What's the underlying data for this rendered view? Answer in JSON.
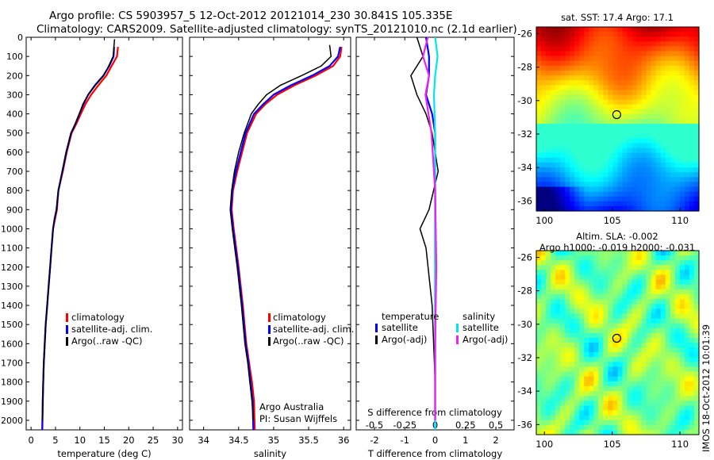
{
  "header": {
    "line1": "Argo profile: CS 5903957_5 12-Oct-2012 20121014_230 30.841S 105.335E",
    "line2": "Climatology: CARS2009. Satellite-adjusted climatology: synTS_20121010.nc (2.1d earlier)"
  },
  "colors": {
    "climatology": "#ff0000",
    "satellite": "#0000ff",
    "argo": "#000000",
    "salinity_satellite": "#00e5ee",
    "salinity_argo": "#ee22ee"
  },
  "depth_axis": {
    "ticks": [
      "0",
      "100",
      "200",
      "300",
      "400",
      "500",
      "600",
      "700",
      "800",
      "900",
      "1000",
      "1100",
      "1200",
      "1300",
      "1400",
      "1500",
      "1600",
      "1700",
      "1800",
      "1900",
      "2000"
    ]
  },
  "temp_panel": {
    "xlabel": "temperature (deg C)",
    "ticks": [
      "0",
      "5",
      "10",
      "15",
      "20",
      "25",
      "30"
    ],
    "legend": [
      "climatology",
      "satellite-adj. clim.",
      "Argo(..raw -QC)"
    ]
  },
  "sal_panel": {
    "xlabel": "salinity",
    "ticks": [
      "34",
      "34.5",
      "35",
      "35.5",
      "36"
    ],
    "legend": [
      "climatology",
      "satellite-adj. clim.",
      "Argo(..raw -QC)"
    ],
    "credit1": "Argo Australia",
    "credit2": "PI: Susan Wijffels"
  },
  "diff_panel": {
    "xlabel": "T difference from climatology",
    "top_label": "S difference from climatology",
    "t_ticks": [
      "-2",
      "-1",
      "0",
      "1",
      "2"
    ],
    "s_ticks": [
      "-0.5",
      "-0.25",
      "0",
      "0.25",
      "0.5"
    ],
    "legend_temp_title": "temperature",
    "legend_sal_title": "salinity",
    "legend_temp": [
      "satellite",
      "Argo(-adj)"
    ],
    "legend_sal": [
      "satellite",
      "Argo(-adj)"
    ]
  },
  "sst_map": {
    "title": "sat. SST: 17.4  Argo: 17.1",
    "lat_ticks": [
      "-26",
      "-28",
      "-30",
      "-32",
      "-34",
      "-36"
    ],
    "lon_ticks": [
      "100",
      "105",
      "110"
    ]
  },
  "sla_map": {
    "title1": "Altim. SLA: -0.002",
    "title2": "Argo h1000: -0.019 h2000: -0.031",
    "lat_ticks": [
      "-26",
      "-28",
      "-30",
      "-32",
      "-34",
      "-36"
    ],
    "lon_ticks": [
      "100",
      "105",
      "110"
    ]
  },
  "timestamp": "IMOS 18-Oct-2012 10:01:39",
  "chart_data": [
    {
      "type": "line",
      "panel": "temperature",
      "xlabel": "temperature (deg C)",
      "xlim": [
        -1,
        31
      ],
      "ylim": [
        2050,
        0
      ],
      "series": [
        {
          "name": "climatology",
          "x": [
            17.8,
            17.6,
            16.5,
            15.4,
            13.8,
            12.3,
            11.1,
            10.2,
            9.3,
            8.3,
            7.3,
            6.5,
            5.6,
            5.3,
            4.9,
            4.5,
            4.2,
            3.9,
            3.6,
            3.3,
            3.0,
            2.8,
            2.6,
            2.5,
            2.4,
            2.3
          ],
          "y": [
            50,
            100,
            150,
            200,
            250,
            300,
            350,
            400,
            450,
            500,
            600,
            700,
            800,
            900,
            950,
            1000,
            1100,
            1200,
            1300,
            1400,
            1500,
            1600,
            1700,
            1800,
            1900,
            2050
          ]
        },
        {
          "name": "satellite-adj. clim.",
          "x": [
            17.0,
            16.9,
            16.0,
            14.8,
            13.1,
            11.7,
            10.7,
            9.9,
            9.1,
            8.2,
            7.2,
            6.4,
            5.6,
            5.2,
            4.8,
            4.5,
            4.2,
            3.9,
            3.6,
            3.3,
            3.0,
            2.8,
            2.6,
            2.5,
            2.4,
            2.3
          ],
          "y": [
            50,
            100,
            150,
            200,
            250,
            300,
            350,
            400,
            450,
            500,
            600,
            700,
            800,
            900,
            950,
            1000,
            1100,
            1200,
            1300,
            1400,
            1500,
            1600,
            1700,
            1800,
            1900,
            2050
          ]
        },
        {
          "name": "Argo(..raw -QC)",
          "x": [
            17.1,
            16.8,
            15.9,
            14.9,
            13.2,
            11.7,
            10.6,
            9.9,
            9.1,
            8.2,
            7.2,
            6.4,
            5.6,
            5.2,
            4.8,
            4.5,
            4.2,
            3.9,
            3.6,
            3.3,
            3.0,
            2.8,
            2.6,
            2.5,
            2.4,
            2.3
          ],
          "y": [
            10,
            100,
            150,
            200,
            250,
            300,
            350,
            400,
            450,
            500,
            600,
            700,
            800,
            900,
            950,
            1000,
            1100,
            1200,
            1300,
            1400,
            1500,
            1600,
            1700,
            1800,
            1900,
            2000
          ]
        }
      ]
    },
    {
      "type": "line",
      "panel": "salinity",
      "xlabel": "salinity",
      "xlim": [
        33.8,
        36.1
      ],
      "ylim": [
        2050,
        0
      ],
      "series": [
        {
          "name": "climatology",
          "x": [
            35.97,
            35.95,
            35.85,
            35.6,
            35.3,
            35.05,
            34.88,
            34.75,
            34.62,
            34.55,
            34.48,
            34.42,
            34.4,
            34.43,
            34.5,
            34.56,
            34.61,
            34.65,
            34.69,
            34.72,
            34.73
          ],
          "y": [
            50,
            100,
            150,
            200,
            250,
            300,
            350,
            400,
            500,
            600,
            700,
            800,
            900,
            1000,
            1200,
            1400,
            1600,
            1700,
            1800,
            1900,
            2050
          ]
        },
        {
          "name": "satellite-adj. clim.",
          "x": [
            35.95,
            35.92,
            35.8,
            35.55,
            35.25,
            35.0,
            34.85,
            34.72,
            34.6,
            34.53,
            34.46,
            34.41,
            34.39,
            34.42,
            34.49,
            34.55,
            34.6,
            34.64,
            34.67,
            34.7,
            34.71
          ],
          "y": [
            50,
            100,
            150,
            200,
            250,
            300,
            350,
            400,
            500,
            600,
            700,
            800,
            900,
            1000,
            1200,
            1400,
            1600,
            1700,
            1800,
            1900,
            2050
          ]
        },
        {
          "name": "Argo(..raw -QC)",
          "x": [
            35.8,
            35.82,
            35.68,
            35.4,
            35.1,
            34.9,
            34.78,
            34.68,
            34.58,
            34.5,
            34.44,
            34.4,
            34.38,
            34.41,
            34.48,
            34.54,
            34.59,
            34.63,
            34.66,
            34.69,
            34.71
          ],
          "y": [
            40,
            100,
            150,
            200,
            250,
            300,
            350,
            400,
            500,
            600,
            700,
            800,
            900,
            1000,
            1200,
            1400,
            1600,
            1700,
            1800,
            1900,
            2000
          ]
        }
      ]
    },
    {
      "type": "line",
      "panel": "difference",
      "xlabel": "T difference from climatology",
      "xlim": [
        -2.6,
        2.6
      ],
      "ylim": [
        2050,
        0
      ],
      "series": [
        {
          "name": "temperature satellite",
          "x": [
            -0.3,
            -0.2,
            -0.2,
            -0.3,
            -0.1,
            0.0,
            0.0,
            0.0,
            0.0,
            0.0,
            0.0,
            0.0
          ],
          "y": [
            0,
            100,
            200,
            300,
            400,
            500,
            700,
            900,
            1200,
            1500,
            1800,
            2050
          ]
        },
        {
          "name": "temperature Argo(-adj)",
          "x": [
            -0.6,
            -0.4,
            -0.8,
            -0.6,
            -0.3,
            -0.1,
            0.1,
            -0.2,
            -0.5,
            -0.3,
            -0.1,
            0.0,
            0.0
          ],
          "y": [
            0,
            100,
            200,
            300,
            400,
            500,
            700,
            900,
            1000,
            1100,
            1400,
            1800,
            2000
          ]
        },
        {
          "name": "salinity satellite",
          "x": [
            0.0,
            0.02,
            0.0,
            -0.01,
            0.0,
            0.0,
            0.0,
            0.0,
            0.0
          ],
          "y": [
            0,
            100,
            200,
            300,
            500,
            800,
            1200,
            1600,
            2050
          ]
        },
        {
          "name": "salinity Argo(-adj)",
          "x": [
            -0.06,
            -0.1,
            -0.05,
            -0.08,
            -0.03,
            0.0,
            0.01,
            0.0,
            0.0
          ],
          "y": [
            0,
            100,
            200,
            300,
            500,
            800,
            1200,
            1600,
            2000
          ]
        }
      ]
    }
  ]
}
